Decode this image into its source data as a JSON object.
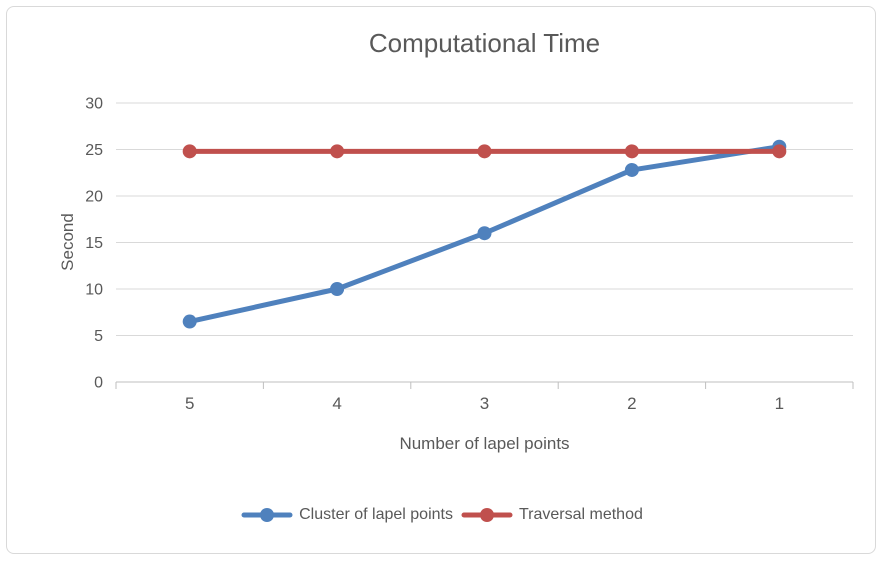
{
  "chart_data": {
    "type": "line",
    "title": "Computational Time",
    "xlabel": "Number of lapel points",
    "ylabel": "Second",
    "categories": [
      "5",
      "4",
      "3",
      "2",
      "1"
    ],
    "series": [
      {
        "name": "Cluster of lapel points",
        "color": "#4F81BD",
        "values": [
          6.5,
          10,
          16,
          22.8,
          25.3
        ]
      },
      {
        "name": "Traversal method",
        "color": "#C0504D",
        "values": [
          24.8,
          24.8,
          24.8,
          24.8,
          24.8
        ]
      }
    ],
    "ylim": [
      0,
      30
    ],
    "ytick_step": 5,
    "grid": true,
    "legend_position": "bottom"
  },
  "colors": {
    "title_text": "#595959",
    "axis_text": "#595959",
    "gridline": "#d9d9d9",
    "axis_line": "#bfbfbf",
    "background": "#ffffff",
    "card_border": "#d9d9d9"
  }
}
